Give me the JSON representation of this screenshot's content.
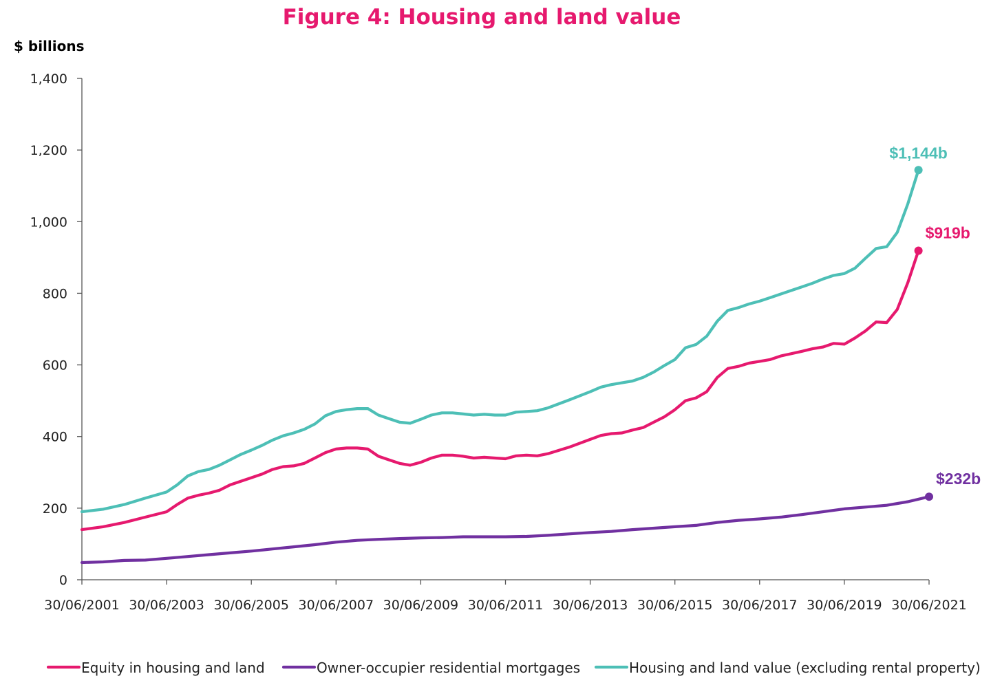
{
  "colors": {
    "equity": "#E6196E",
    "mortgages": "#7030A0",
    "value": "#4DBFB6",
    "title": "#E6196E",
    "axis": "#555555"
  },
  "chart_data": {
    "type": "line",
    "title": "Figure 4: Housing and land value",
    "ylabel": "$ billions",
    "xlabel": "",
    "ylim": [
      0,
      1400
    ],
    "yticks": [
      "0",
      "200",
      "400",
      "600",
      "800",
      "1,000",
      "1,200",
      "1,400"
    ],
    "ytick_values": [
      0,
      200,
      400,
      600,
      800,
      1000,
      1200,
      1400
    ],
    "xlim": [
      2001.5,
      2021.5
    ],
    "xticks": [
      "30/06/2001",
      "30/06/2003",
      "30/06/2005",
      "30/06/2007",
      "30/06/2009",
      "30/06/2011",
      "30/06/2013",
      "30/06/2015",
      "30/06/2017",
      "30/06/2019",
      "30/06/2021"
    ],
    "xtick_values": [
      2001.5,
      2003.5,
      2005.5,
      2007.5,
      2009.5,
      2011.5,
      2013.5,
      2015.5,
      2017.5,
      2019.5,
      2021.5
    ],
    "grid": false,
    "legend_position": "bottom",
    "series": [
      {
        "name": "Equity in housing and land",
        "color_key": "equity",
        "end_label": "$919b",
        "points": [
          [
            2001.5,
            140
          ],
          [
            2002.0,
            148
          ],
          [
            2002.5,
            160
          ],
          [
            2003.0,
            175
          ],
          [
            2003.5,
            190
          ],
          [
            2003.75,
            210
          ],
          [
            2004.0,
            228
          ],
          [
            2004.25,
            236
          ],
          [
            2004.5,
            242
          ],
          [
            2004.75,
            250
          ],
          [
            2005.0,
            265
          ],
          [
            2005.5,
            285
          ],
          [
            2005.75,
            295
          ],
          [
            2006.0,
            308
          ],
          [
            2006.25,
            316
          ],
          [
            2006.5,
            318
          ],
          [
            2006.75,
            325
          ],
          [
            2007.0,
            340
          ],
          [
            2007.25,
            355
          ],
          [
            2007.5,
            365
          ],
          [
            2007.75,
            368
          ],
          [
            2008.0,
            368
          ],
          [
            2008.25,
            365
          ],
          [
            2008.5,
            345
          ],
          [
            2008.75,
            335
          ],
          [
            2009.0,
            325
          ],
          [
            2009.25,
            320
          ],
          [
            2009.5,
            328
          ],
          [
            2009.75,
            340
          ],
          [
            2010.0,
            348
          ],
          [
            2010.25,
            348
          ],
          [
            2010.5,
            345
          ],
          [
            2010.75,
            340
          ],
          [
            2011.0,
            342
          ],
          [
            2011.25,
            340
          ],
          [
            2011.5,
            338
          ],
          [
            2011.75,
            346
          ],
          [
            2012.0,
            348
          ],
          [
            2012.25,
            346
          ],
          [
            2012.5,
            352
          ],
          [
            2013.0,
            370
          ],
          [
            2013.5,
            392
          ],
          [
            2013.75,
            403
          ],
          [
            2014.0,
            408
          ],
          [
            2014.25,
            410
          ],
          [
            2014.5,
            418
          ],
          [
            2014.75,
            425
          ],
          [
            2015.0,
            440
          ],
          [
            2015.25,
            455
          ],
          [
            2015.5,
            475
          ],
          [
            2015.75,
            500
          ],
          [
            2016.0,
            508
          ],
          [
            2016.25,
            525
          ],
          [
            2016.5,
            565
          ],
          [
            2016.75,
            590
          ],
          [
            2017.0,
            596
          ],
          [
            2017.25,
            605
          ],
          [
            2017.5,
            610
          ],
          [
            2017.75,
            615
          ],
          [
            2018.0,
            625
          ],
          [
            2018.5,
            638
          ],
          [
            2018.75,
            645
          ],
          [
            2019.0,
            650
          ],
          [
            2019.25,
            660
          ],
          [
            2019.5,
            658
          ],
          [
            2019.75,
            675
          ],
          [
            2020.0,
            695
          ],
          [
            2020.25,
            720
          ],
          [
            2020.5,
            718
          ],
          [
            2020.75,
            755
          ],
          [
            2021.0,
            830
          ],
          [
            2021.25,
            919
          ]
        ]
      },
      {
        "name": "Owner-occupier residential mortgages",
        "color_key": "mortgages",
        "end_label": "$232b",
        "points": [
          [
            2001.5,
            48
          ],
          [
            2002.0,
            50
          ],
          [
            2002.5,
            54
          ],
          [
            2003.0,
            55
          ],
          [
            2003.5,
            60
          ],
          [
            2004.0,
            65
          ],
          [
            2004.5,
            70
          ],
          [
            2005.0,
            75
          ],
          [
            2005.5,
            80
          ],
          [
            2006.0,
            86
          ],
          [
            2006.5,
            92
          ],
          [
            2007.0,
            98
          ],
          [
            2007.5,
            105
          ],
          [
            2008.0,
            110
          ],
          [
            2008.5,
            113
          ],
          [
            2009.0,
            115
          ],
          [
            2009.5,
            117
          ],
          [
            2010.0,
            118
          ],
          [
            2010.5,
            120
          ],
          [
            2011.0,
            120
          ],
          [
            2011.5,
            120
          ],
          [
            2012.0,
            121
          ],
          [
            2012.5,
            124
          ],
          [
            2013.0,
            128
          ],
          [
            2013.5,
            132
          ],
          [
            2014.0,
            135
          ],
          [
            2014.5,
            140
          ],
          [
            2015.0,
            144
          ],
          [
            2015.5,
            148
          ],
          [
            2016.0,
            152
          ],
          [
            2016.5,
            160
          ],
          [
            2017.0,
            166
          ],
          [
            2017.5,
            170
          ],
          [
            2018.0,
            175
          ],
          [
            2018.5,
            182
          ],
          [
            2019.0,
            190
          ],
          [
            2019.5,
            198
          ],
          [
            2020.0,
            203
          ],
          [
            2020.5,
            208
          ],
          [
            2021.0,
            218
          ],
          [
            2021.5,
            232
          ]
        ]
      },
      {
        "name": "Housing and land value (excluding rental property)",
        "color_key": "value",
        "end_label": "$1,144b",
        "points": [
          [
            2001.5,
            190
          ],
          [
            2002.0,
            197
          ],
          [
            2002.5,
            210
          ],
          [
            2003.0,
            228
          ],
          [
            2003.5,
            245
          ],
          [
            2003.75,
            265
          ],
          [
            2004.0,
            290
          ],
          [
            2004.25,
            302
          ],
          [
            2004.5,
            308
          ],
          [
            2004.75,
            320
          ],
          [
            2005.0,
            335
          ],
          [
            2005.25,
            350
          ],
          [
            2005.5,
            362
          ],
          [
            2005.75,
            375
          ],
          [
            2006.0,
            390
          ],
          [
            2006.25,
            402
          ],
          [
            2006.5,
            410
          ],
          [
            2006.75,
            420
          ],
          [
            2007.0,
            435
          ],
          [
            2007.25,
            458
          ],
          [
            2007.5,
            470
          ],
          [
            2007.75,
            475
          ],
          [
            2008.0,
            478
          ],
          [
            2008.25,
            478
          ],
          [
            2008.5,
            460
          ],
          [
            2008.75,
            450
          ],
          [
            2009.0,
            440
          ],
          [
            2009.25,
            437
          ],
          [
            2009.5,
            448
          ],
          [
            2009.75,
            460
          ],
          [
            2010.0,
            466
          ],
          [
            2010.25,
            466
          ],
          [
            2010.5,
            463
          ],
          [
            2010.75,
            460
          ],
          [
            2011.0,
            462
          ],
          [
            2011.25,
            460
          ],
          [
            2011.5,
            460
          ],
          [
            2011.75,
            468
          ],
          [
            2012.0,
            470
          ],
          [
            2012.25,
            472
          ],
          [
            2012.5,
            480
          ],
          [
            2013.0,
            502
          ],
          [
            2013.5,
            525
          ],
          [
            2013.75,
            538
          ],
          [
            2014.0,
            545
          ],
          [
            2014.25,
            550
          ],
          [
            2014.5,
            555
          ],
          [
            2014.75,
            565
          ],
          [
            2015.0,
            580
          ],
          [
            2015.25,
            598
          ],
          [
            2015.5,
            615
          ],
          [
            2015.75,
            648
          ],
          [
            2016.0,
            657
          ],
          [
            2016.25,
            680
          ],
          [
            2016.5,
            722
          ],
          [
            2016.75,
            752
          ],
          [
            2017.0,
            760
          ],
          [
            2017.25,
            770
          ],
          [
            2017.5,
            778
          ],
          [
            2017.75,
            788
          ],
          [
            2018.0,
            798
          ],
          [
            2018.5,
            818
          ],
          [
            2018.75,
            828
          ],
          [
            2019.0,
            840
          ],
          [
            2019.25,
            850
          ],
          [
            2019.5,
            855
          ],
          [
            2019.75,
            870
          ],
          [
            2020.0,
            898
          ],
          [
            2020.25,
            925
          ],
          [
            2020.5,
            930
          ],
          [
            2020.75,
            970
          ],
          [
            2021.0,
            1050
          ],
          [
            2021.25,
            1144
          ]
        ]
      }
    ]
  }
}
